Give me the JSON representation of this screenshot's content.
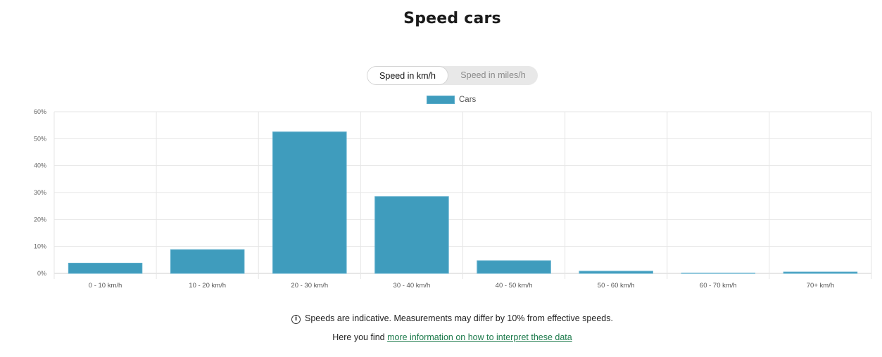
{
  "page": {
    "title": "Speed cars"
  },
  "unit_toggle": {
    "options": [
      "Speed in km/h",
      "Speed in miles/h"
    ],
    "selected": "Speed in km/h"
  },
  "footer": {
    "disclaimer": "Speeds are indicative. Measurements may differ by 10% from effective speeds.",
    "more_prefix": "Here you find ",
    "more_link": "more information on how to interpret these data",
    "info_icon_glyph": "i"
  },
  "colors": {
    "bar": "#3f9cbd",
    "link": "#1c7a4b"
  },
  "chart_data": {
    "type": "bar",
    "title": "Speed cars",
    "xlabel": "",
    "ylabel": "",
    "categories": [
      "0 - 10 km/h",
      "10 - 20 km/h",
      "20 - 30 km/h",
      "30 - 40 km/h",
      "40 - 50 km/h",
      "50 - 60 km/h",
      "60 - 70 km/h",
      "70+ km/h"
    ],
    "series": [
      {
        "name": "Cars",
        "values": [
          3.8,
          8.8,
          52.5,
          28.5,
          4.7,
          0.8,
          0.1,
          0.5
        ]
      }
    ],
    "ylim": [
      0,
      60
    ],
    "yticks": [
      "0%",
      "10%",
      "20%",
      "30%",
      "40%",
      "50%",
      "60%"
    ],
    "grid": true,
    "legend": "top-center"
  }
}
